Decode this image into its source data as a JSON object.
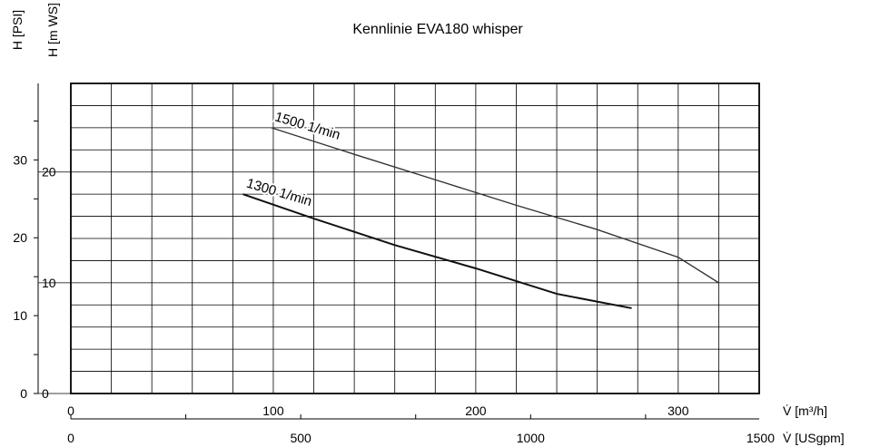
{
  "chart_data": {
    "type": "line",
    "title": "Kennlinie EVA180 whisper",
    "y_axes": [
      {
        "label": "H [PSI]",
        "ticks": [
          0,
          10,
          20,
          30
        ],
        "unit_to_mws": 0.7031
      },
      {
        "label": "H [m WS]",
        "ticks": [
          0,
          10,
          20
        ],
        "range": [
          0,
          28
        ]
      }
    ],
    "x_axes": [
      {
        "label": "V̇ [m³/h]",
        "ticks": [
          0,
          100,
          200,
          300
        ],
        "range": [
          0,
          340
        ]
      },
      {
        "label": "V̇ [USgpm]",
        "ticks": [
          0,
          500,
          1000,
          1500
        ],
        "m3h_per_unit": 0.2271
      }
    ],
    "grid": true,
    "series": [
      {
        "name": "1500 1/min",
        "x": [
          99,
          140,
          180,
          220,
          260,
          300,
          320
        ],
        "y": [
          24.0,
          21.6,
          19.3,
          17.0,
          14.8,
          12.3,
          10.0
        ]
      },
      {
        "name": "1300 1/min",
        "x": [
          85,
          120,
          160,
          200,
          240,
          277
        ],
        "y": [
          18.0,
          15.8,
          13.4,
          11.3,
          9.0,
          7.7
        ]
      }
    ]
  }
}
